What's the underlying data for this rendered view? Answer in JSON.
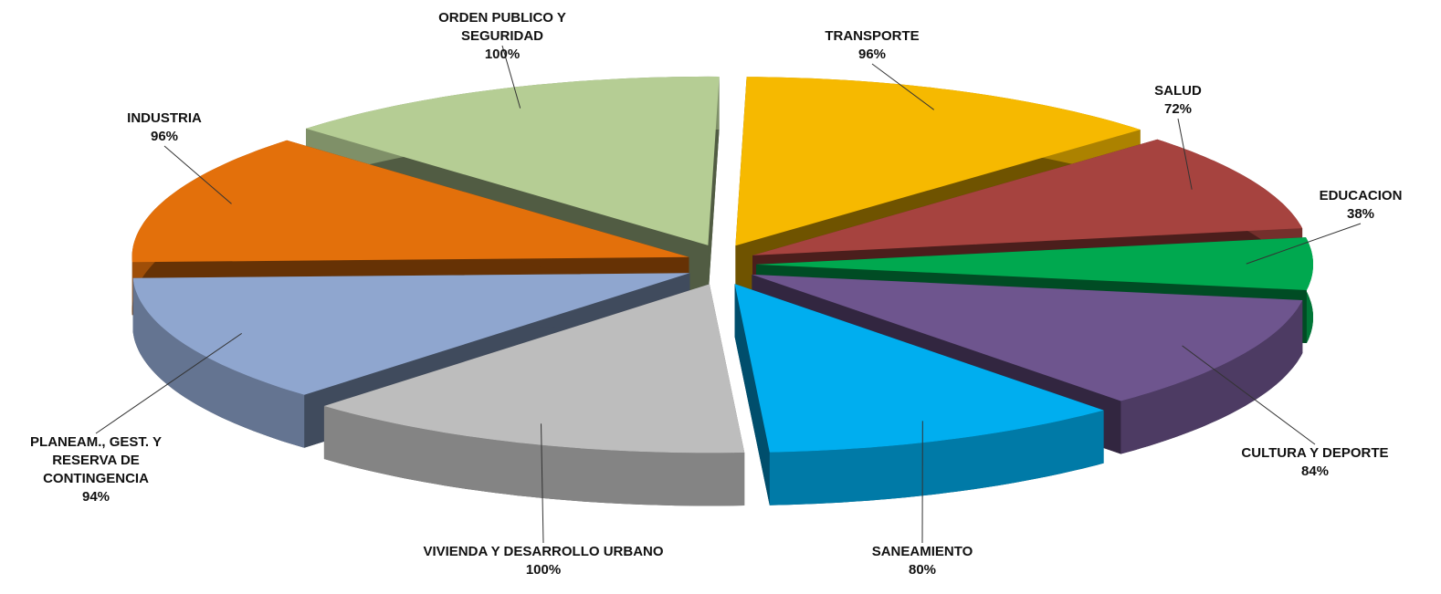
{
  "chart_data": {
    "type": "pie",
    "categories": [
      "TRANSPORTE",
      "SALUD",
      "EDUCACION",
      "CULTURA Y DEPORTE",
      "SANEAMIENTO",
      "VIVIENDA Y DESARROLLO URBANO",
      "PLANEAM., GEST. Y RESERVA DE CONTINGENCIA",
      "INDUSTRIA",
      "ORDEN PUBLICO Y SEGURIDAD"
    ],
    "values": [
      96,
      72,
      38,
      84,
      80,
      100,
      94,
      96,
      100
    ],
    "value_labels": [
      "96%",
      "72%",
      "38%",
      "84%",
      "80%",
      "100%",
      "94%",
      "96%",
      "100%"
    ],
    "colors": [
      "#f6b900",
      "#a6433f",
      "#00a84f",
      "#6e558e",
      "#00aeef",
      "#bdbdbd",
      "#8fa6cf",
      "#e3700b",
      "#b5cd94"
    ]
  }
}
